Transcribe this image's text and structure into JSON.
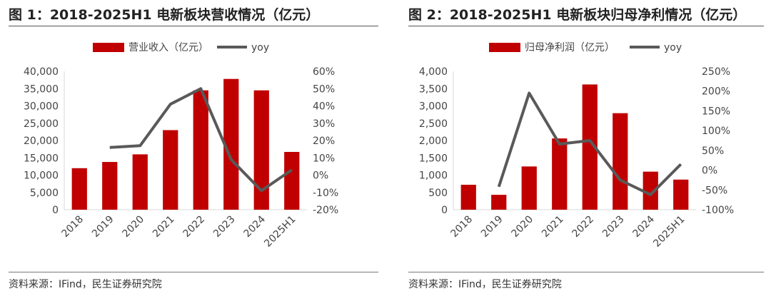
{
  "colors": {
    "bar": "#c00000",
    "line": "#595959",
    "axis": "#d9d9d9"
  },
  "chart_data": [
    {
      "type": "bar+line",
      "title": "图 1：2018-2025H1 电新板块营收情况（亿元）",
      "source": "资料来源：IFind，民生证券研究院",
      "categories": [
        "2018",
        "2019",
        "2020",
        "2021",
        "2022",
        "2023",
        "2024",
        "2025H1"
      ],
      "legend": {
        "position": "top",
        "bar_label": "营业收入（亿元）",
        "line_label": "yoy"
      },
      "series": [
        {
          "name": "营业收入（亿元）",
          "type": "bar",
          "axis": "left",
          "values": [
            12000,
            13800,
            16000,
            23000,
            34500,
            37800,
            34500,
            16700
          ]
        },
        {
          "name": "yoy",
          "type": "line",
          "axis": "right",
          "values": [
            null,
            16,
            17,
            41,
            50,
            9,
            -9,
            3
          ]
        }
      ],
      "y_left": {
        "min": 0,
        "max": 40000,
        "ticks": [
          "0",
          "5,000",
          "10,000",
          "15,000",
          "20,000",
          "25,000",
          "30,000",
          "35,000",
          "40,000"
        ]
      },
      "y_right": {
        "min": -20,
        "max": 60,
        "ticks": [
          "-20%",
          "-10%",
          "0%",
          "10%",
          "20%",
          "30%",
          "40%",
          "50%",
          "60%"
        ]
      },
      "grid": false
    },
    {
      "type": "bar+line",
      "title": "图 2：2018-2025H1 电新板块归母净利情况（亿元）",
      "source": "资料来源：IFind，民生证券研究院",
      "categories": [
        "2018",
        "2019",
        "2020",
        "2021",
        "2022",
        "2023",
        "2024",
        "2025H1"
      ],
      "legend": {
        "position": "top",
        "bar_label": "归母净利润（亿元）",
        "line_label": "yoy"
      },
      "series": [
        {
          "name": "归母净利润（亿元）",
          "type": "bar",
          "axis": "left",
          "values": [
            720,
            430,
            1250,
            2060,
            3620,
            2790,
            1100,
            870
          ]
        },
        {
          "name": "yoy",
          "type": "line",
          "axis": "right",
          "values": [
            null,
            -42,
            195,
            66,
            75,
            -25,
            -62,
            15
          ]
        }
      ],
      "y_left": {
        "min": 0,
        "max": 4000,
        "ticks": [
          "0",
          "500",
          "1,000",
          "1,500",
          "2,000",
          "2,500",
          "3,000",
          "3,500",
          "4,000"
        ]
      },
      "y_right": {
        "min": -100,
        "max": 250,
        "ticks": [
          "-100%",
          "-50%",
          "0%",
          "50%",
          "100%",
          "150%",
          "200%",
          "250%"
        ]
      },
      "grid": false
    }
  ]
}
